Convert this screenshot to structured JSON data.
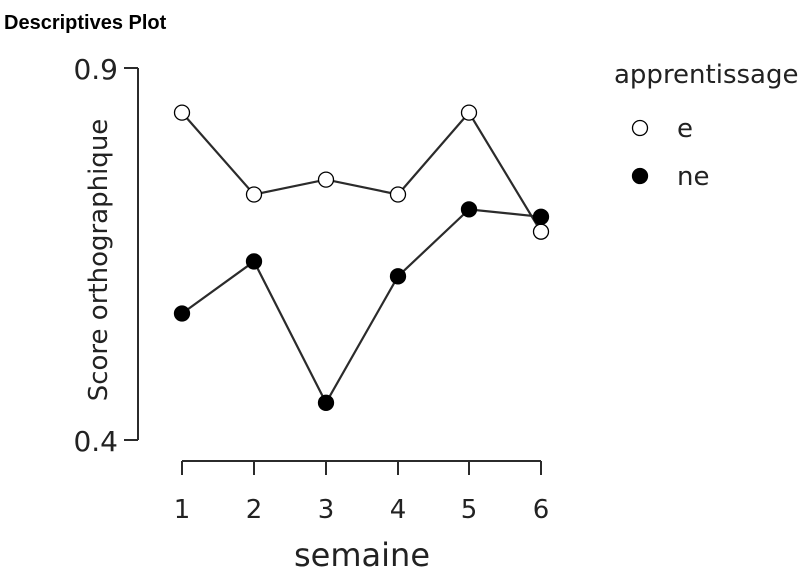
{
  "plot_title": "Descriptives Plot",
  "chart_data": {
    "type": "line",
    "title": "Descriptives Plot",
    "xlabel": "semaine",
    "ylabel": "Score orthographique",
    "categories": [
      "1",
      "2",
      "3",
      "4",
      "5",
      "6"
    ],
    "yticks": [
      "0.9",
      "0.4"
    ],
    "ylim": [
      0.4,
      0.9
    ],
    "grid": false,
    "legend": {
      "title": "apprentissage",
      "placement": "right"
    },
    "series": [
      {
        "name": "e",
        "marker": "open-circle",
        "values": [
          0.84,
          0.73,
          0.75,
          0.73,
          0.84,
          0.68
        ]
      },
      {
        "name": "ne",
        "marker": "filled-circle",
        "values": [
          0.57,
          0.64,
          0.45,
          0.62,
          0.71,
          0.7
        ]
      }
    ],
    "colors": {
      "line": "#2b2b2b",
      "open_fill": "#ffffff",
      "filled_fill": "#000000"
    }
  }
}
